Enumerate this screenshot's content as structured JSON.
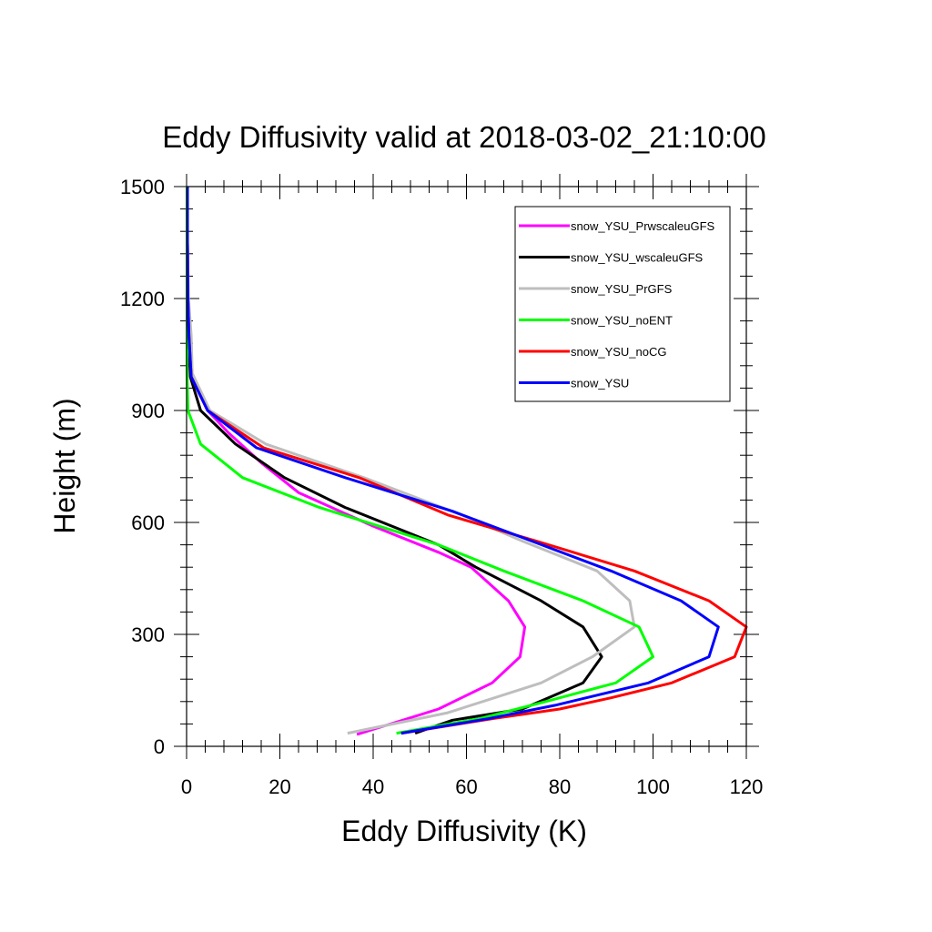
{
  "chart_data": {
    "type": "line",
    "title": "Eddy Diffusivity valid at 2018-03-02_21:10:00",
    "xlabel": "Eddy Diffusivity (K)",
    "ylabel": "Height (m)",
    "xlim": [
      0,
      120
    ],
    "ylim": [
      0,
      1500
    ],
    "xticks": [
      "0",
      "20",
      "40",
      "60",
      "80",
      "100",
      "120"
    ],
    "yticks": [
      "0",
      "300",
      "600",
      "900",
      "1200",
      "1500"
    ],
    "grid": false,
    "legend_position": "top-right",
    "series": [
      {
        "name": "snow_YSU_PrwscaleuGFS",
        "color": "#ff00ff",
        "points": [
          [
            36.5,
            32
          ],
          [
            54,
            100
          ],
          [
            65.5,
            170
          ],
          [
            71.5,
            240
          ],
          [
            72.5,
            320
          ],
          [
            69,
            390
          ],
          [
            61,
            480
          ],
          [
            54,
            520
          ],
          [
            40,
            590
          ],
          [
            24,
            680
          ],
          [
            16,
            760
          ],
          [
            9,
            840
          ],
          [
            4.5,
            900
          ],
          [
            1,
            990
          ],
          [
            0.5,
            1100
          ],
          [
            0.3,
            1200
          ],
          [
            0.2,
            1350
          ],
          [
            0.2,
            1500
          ]
        ]
      },
      {
        "name": "snow_YSU_wscaleuGFS",
        "color": "#000000",
        "points": [
          [
            49,
            35
          ],
          [
            57,
            70
          ],
          [
            72,
            100
          ],
          [
            85,
            170
          ],
          [
            89,
            240
          ],
          [
            85,
            320
          ],
          [
            76,
            390
          ],
          [
            62,
            480
          ],
          [
            54,
            540
          ],
          [
            34,
            640
          ],
          [
            21,
            720
          ],
          [
            10.5,
            810
          ],
          [
            3,
            900
          ],
          [
            0.8,
            990
          ],
          [
            0.4,
            1100
          ],
          [
            0.3,
            1200
          ],
          [
            0.2,
            1350
          ],
          [
            0.2,
            1500
          ]
        ]
      },
      {
        "name": "snow_YSU_PrGFS",
        "color": "#bebebe",
        "points": [
          [
            34.5,
            35
          ],
          [
            56,
            90
          ],
          [
            76,
            170
          ],
          [
            87,
            240
          ],
          [
            96,
            320
          ],
          [
            95,
            390
          ],
          [
            88,
            470
          ],
          [
            72,
            550
          ],
          [
            59,
            620
          ],
          [
            38,
            720
          ],
          [
            17,
            810
          ],
          [
            5,
            900
          ],
          [
            1.2,
            1000
          ],
          [
            1,
            1100
          ],
          [
            0.4,
            1200
          ],
          [
            0.2,
            1350
          ],
          [
            0.2,
            1500
          ]
        ]
      },
      {
        "name": "snow_YSU_noENT",
        "color": "#00ff00",
        "points": [
          [
            45,
            35
          ],
          [
            63,
            75
          ],
          [
            77,
            120
          ],
          [
            92,
            170
          ],
          [
            100,
            240
          ],
          [
            97,
            320
          ],
          [
            85,
            390
          ],
          [
            68,
            470
          ],
          [
            54,
            540
          ],
          [
            28.5,
            640
          ],
          [
            12,
            720
          ],
          [
            3,
            810
          ],
          [
            0.3,
            900
          ],
          [
            0.1,
            1000
          ],
          [
            0.1,
            1100
          ],
          [
            0.1,
            1200
          ],
          [
            0.1,
            1350
          ],
          [
            0.1,
            1500
          ]
        ]
      },
      {
        "name": "snow_YSU_noCG",
        "color": "#ff0000",
        "points": [
          [
            46,
            35
          ],
          [
            66,
            75
          ],
          [
            80,
            100
          ],
          [
            91,
            130
          ],
          [
            104,
            170
          ],
          [
            117.5,
            240
          ],
          [
            120,
            320
          ],
          [
            112,
            390
          ],
          [
            96,
            470
          ],
          [
            75,
            550
          ],
          [
            56,
            620
          ],
          [
            37,
            720
          ],
          [
            16.5,
            800
          ],
          [
            4.5,
            900
          ],
          [
            1,
            990
          ],
          [
            0.5,
            1100
          ],
          [
            0.3,
            1200
          ],
          [
            0.2,
            1350
          ],
          [
            0.2,
            1500
          ]
        ]
      },
      {
        "name": "snow_YSU",
        "color": "#0000ff",
        "points": [
          [
            46,
            35
          ],
          [
            65,
            75
          ],
          [
            79,
            110
          ],
          [
            99,
            170
          ],
          [
            112,
            240
          ],
          [
            114,
            320
          ],
          [
            106,
            390
          ],
          [
            91,
            470
          ],
          [
            74,
            550
          ],
          [
            57,
            630
          ],
          [
            34,
            720
          ],
          [
            15,
            800
          ],
          [
            4.5,
            900
          ],
          [
            1,
            990
          ],
          [
            0.5,
            1100
          ],
          [
            0.3,
            1200
          ],
          [
            0.2,
            1350
          ],
          [
            0.2,
            1500
          ]
        ]
      }
    ]
  }
}
